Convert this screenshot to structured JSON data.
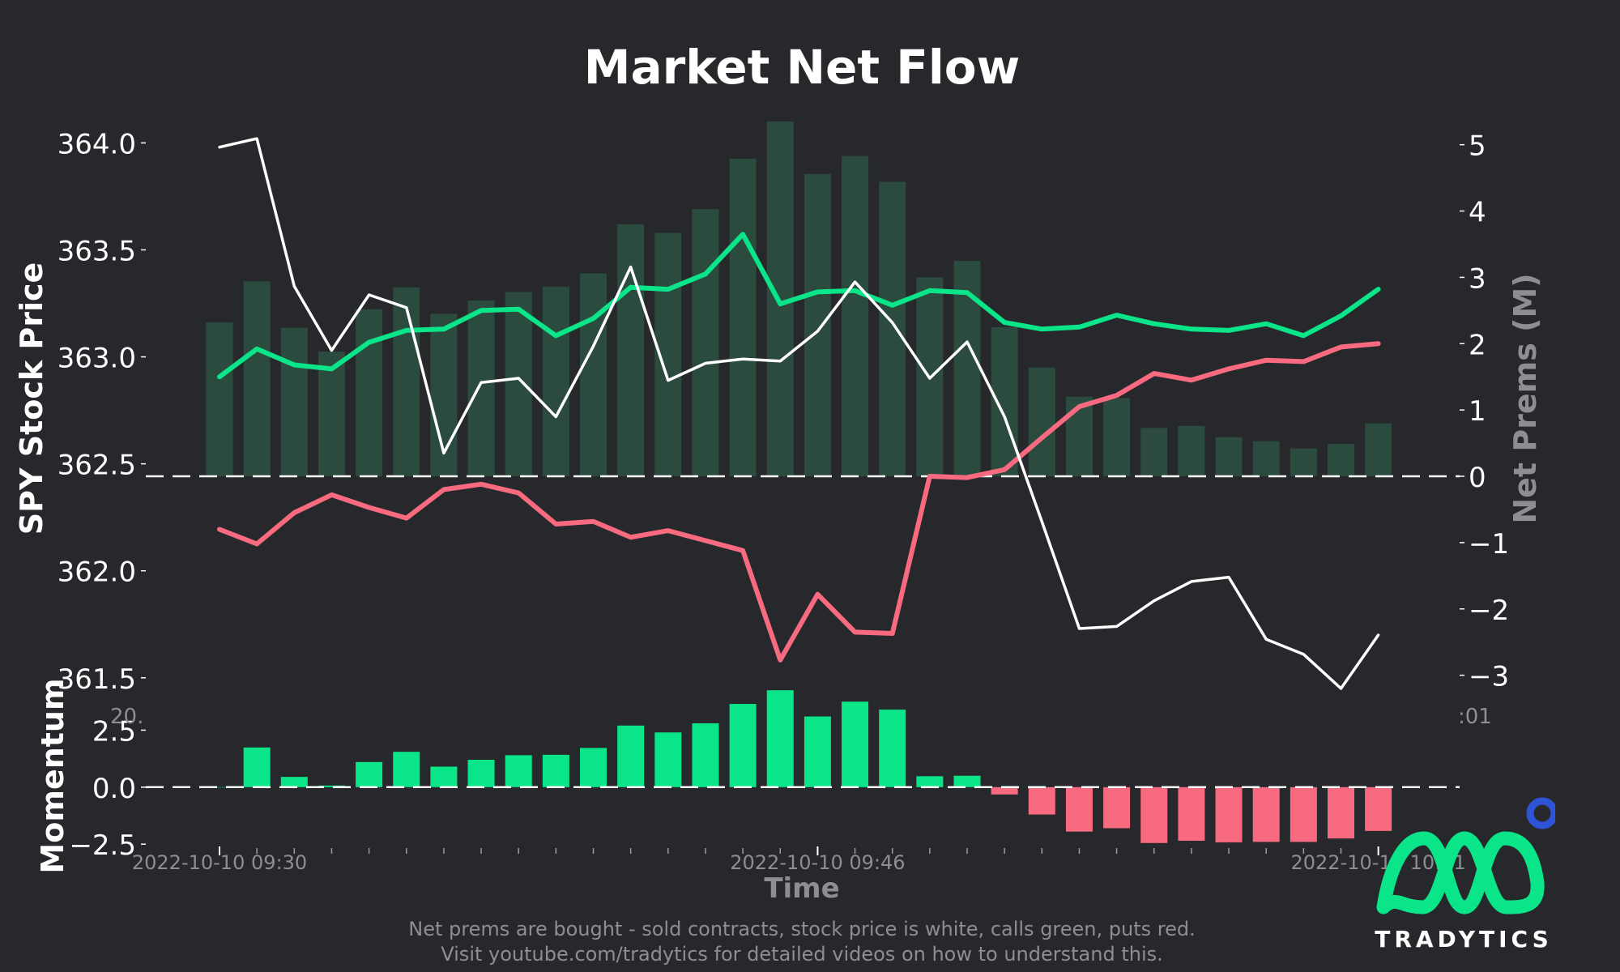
{
  "chart_data": {
    "type": "line",
    "title": "Market Net Flow",
    "xlabel": "Time",
    "ylabel_left": "SPY Stock Price",
    "ylabel_right": "Net Prems (M)",
    "ylabel_momentum": "Momentum",
    "ylim_price": [
      361.45,
      364.1
    ],
    "ylim_prems": [
      -3.2,
      5.35
    ],
    "ylim_momentum": [
      -2.6,
      3.9
    ],
    "price_ticks": [
      "364.0",
      "363.5",
      "363.0",
      "362.5",
      "362.0",
      "361.5"
    ],
    "price_tick_values": [
      364.0,
      363.5,
      363.0,
      362.5,
      362.0,
      361.5
    ],
    "prems_ticks": [
      "5",
      "4",
      "3",
      "2",
      "1",
      "0",
      "−1",
      "−2",
      "−3"
    ],
    "prems_tick_values": [
      5,
      4,
      3,
      2,
      1,
      0,
      -1,
      -2,
      -3
    ],
    "momentum_ticks": [
      "2.5",
      "0.0",
      "−2.5"
    ],
    "momentum_tick_values": [
      2.5,
      0.0,
      -2.5
    ],
    "x_tick_labels": [
      "2022-10-10 09:30",
      "2022-10-10 09:46",
      "2022-10-10 10:01"
    ],
    "x_tick_positions": [
      0,
      16,
      31
    ],
    "x_minor_tick_count": 32,
    "clipped_labels": [
      "20.",
      ":01"
    ],
    "grid": false,
    "series": [
      {
        "name": "SPY Stock Price",
        "color": "#ffffff",
        "axis": "price",
        "x": [
          0,
          1,
          2,
          3,
          4,
          5,
          6,
          7,
          8,
          9,
          10,
          11,
          12,
          13,
          14,
          15,
          16,
          17,
          18,
          19,
          20,
          21,
          22,
          23,
          24,
          25,
          26,
          27,
          28,
          29,
          30,
          31
        ],
        "values": [
          363.98,
          364.02,
          363.33,
          363.03,
          363.29,
          363.23,
          362.55,
          362.88,
          362.9,
          362.72,
          363.05,
          363.42,
          362.89,
          362.97,
          362.99,
          362.98,
          363.12,
          363.35,
          363.16,
          362.9,
          363.07,
          362.72,
          362.23,
          361.73,
          361.74,
          361.86,
          361.95,
          361.97,
          361.68,
          361.61,
          361.45,
          361.7
        ]
      },
      {
        "name": "Calls Net Prems",
        "color": "#0be589",
        "axis": "prems",
        "x": [
          0,
          1,
          2,
          3,
          4,
          5,
          6,
          7,
          8,
          9,
          10,
          11,
          12,
          13,
          14,
          15,
          16,
          17,
          18,
          19,
          20,
          21,
          22,
          23,
          24,
          25,
          26,
          27,
          28,
          29,
          30,
          31
        ],
        "values": [
          1.5,
          1.92,
          1.68,
          1.62,
          2.02,
          2.2,
          2.22,
          2.5,
          2.52,
          2.12,
          2.38,
          2.85,
          2.82,
          3.05,
          3.65,
          2.6,
          2.78,
          2.8,
          2.58,
          2.8,
          2.77,
          2.32,
          2.22,
          2.25,
          2.43,
          2.3,
          2.22,
          2.2,
          2.3,
          2.12,
          2.42,
          2.82
        ]
      },
      {
        "name": "Puts Net Prems",
        "color": "#f76a80",
        "axis": "prems",
        "x": [
          0,
          1,
          2,
          3,
          4,
          5,
          6,
          7,
          8,
          9,
          10,
          11,
          12,
          13,
          14,
          15,
          16,
          17,
          18,
          19,
          20,
          21,
          22,
          23,
          24,
          25,
          26,
          27,
          28,
          29,
          30,
          31
        ],
        "values": [
          -0.8,
          -1.02,
          -0.55,
          -0.28,
          -0.47,
          -0.63,
          -0.2,
          -0.12,
          -0.25,
          -0.72,
          -0.68,
          -0.92,
          -0.82,
          -0.97,
          -1.12,
          -2.77,
          -1.78,
          -2.35,
          -2.37,
          0,
          -0.02,
          0.1,
          0.58,
          1.05,
          1.22,
          1.55,
          1.45,
          1.62,
          1.75,
          1.73,
          1.95,
          2.0
        ]
      },
      {
        "name": "Net Flow",
        "color": "#3bc78a",
        "axis": "prems",
        "type": "bar",
        "x": [
          0,
          1,
          2,
          3,
          4,
          5,
          6,
          7,
          8,
          9,
          10,
          11,
          12,
          13,
          14,
          15,
          16,
          17,
          18,
          19,
          20,
          21,
          22,
          23,
          24,
          25,
          26,
          27,
          28,
          29,
          30,
          31
        ],
        "values": [
          2.32,
          2.94,
          2.24,
          1.88,
          2.52,
          2.85,
          2.45,
          2.65,
          2.78,
          2.86,
          3.06,
          3.8,
          3.67,
          4.03,
          4.79,
          5.35,
          4.56,
          4.83,
          4.44,
          3.0,
          3.25,
          2.25,
          1.64,
          1.2,
          1.18,
          0.73,
          0.76,
          0.59,
          0.53,
          0.42,
          0.49,
          0.8
        ]
      },
      {
        "name": "Momentum",
        "axis": "momentum",
        "type": "bar",
        "positive_color": "#0be589",
        "negative_color": "#f76a80",
        "x": [
          0,
          1,
          2,
          3,
          4,
          5,
          6,
          7,
          8,
          9,
          10,
          11,
          12,
          13,
          14,
          15,
          16,
          17,
          18,
          19,
          20,
          21,
          22,
          23,
          24,
          25,
          26,
          27,
          28,
          29,
          30,
          31
        ],
        "values": [
          0,
          1.74,
          0.45,
          0.07,
          1.1,
          1.55,
          0.9,
          1.2,
          1.4,
          1.42,
          1.72,
          2.7,
          2.4,
          2.8,
          3.65,
          4.25,
          3.1,
          3.75,
          3.4,
          0.48,
          0.5,
          -0.32,
          -1.2,
          -1.95,
          -1.8,
          -2.45,
          -2.35,
          -2.42,
          -2.4,
          -2.4,
          -2.25,
          -1.92
        ]
      }
    ]
  },
  "footnote": {
    "line1": "Net prems are bought - sold contracts, stock price is white, calls green, puts red.",
    "line2": "Visit youtube.com/tradytics for detailed videos on how to understand this."
  },
  "brand": {
    "name": "TRADYTICS",
    "logo_icon": "tradytics-logo-icon",
    "colors": {
      "logo": "#0be589",
      "dot": "#2f53d6"
    }
  },
  "colors": {
    "background": "#27282b",
    "text": "#ffffff",
    "muted": "#8c8e91"
  }
}
